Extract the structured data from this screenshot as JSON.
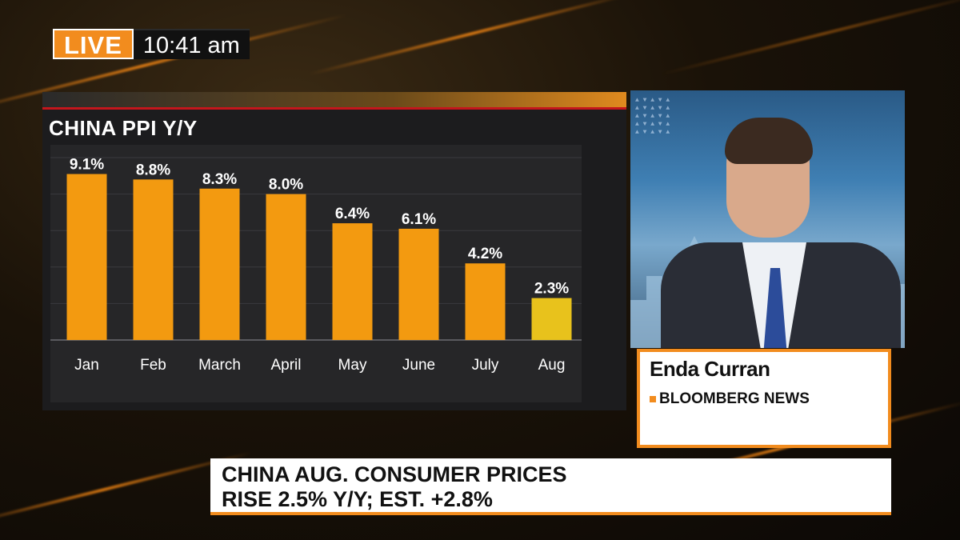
{
  "broadcast": {
    "live_label": "LIVE",
    "time": "10:41 am"
  },
  "chart_panel": {
    "title": "CHINA PPI Y/Y"
  },
  "chart_data": {
    "type": "bar",
    "title": "CHINA PPI Y/Y",
    "categories": [
      "Jan",
      "Feb",
      "March",
      "April",
      "May",
      "June",
      "July",
      "Aug"
    ],
    "values": [
      9.1,
      8.8,
      8.3,
      8.0,
      6.4,
      6.1,
      4.2,
      2.3
    ],
    "value_labels": [
      "9.1%",
      "8.8%",
      "8.3%",
      "8.0%",
      "6.4%",
      "6.1%",
      "4.2%",
      "2.3%"
    ],
    "ylim": [
      0,
      10
    ],
    "grid": true,
    "bar_color": "#f39a10",
    "highlight_color": "#e8c21c",
    "highlight_index": 7
  },
  "guest": {
    "name": "Enda Curran",
    "organization": "BLOOMBERG NEWS"
  },
  "headline": {
    "line1": "CHINA AUG. CONSUMER PRICES",
    "line2": "RISE 2.5% Y/Y; EST. +2.8%"
  },
  "colors": {
    "accent": "#f28c1e",
    "bar": "#f39a10",
    "highlight_bar": "#e8c21c"
  }
}
